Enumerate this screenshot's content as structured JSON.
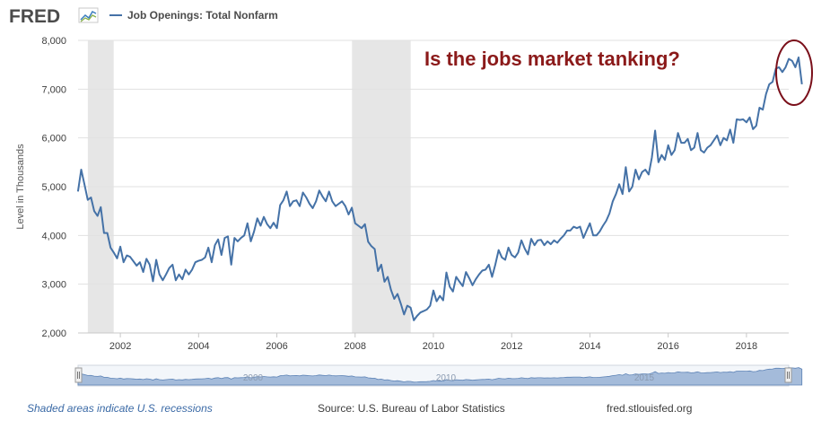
{
  "header": {
    "logo_text": "FRED",
    "legend_label": "Job Openings: Total Nonfarm"
  },
  "annotation": {
    "text": "Is the jobs market tanking?"
  },
  "footer": {
    "recession_note": "Shaded areas indicate U.S. recessions",
    "source": "Source: U.S. Bureau of Labor Statistics",
    "site": "fred.stlouisfed.org"
  },
  "navigator": {
    "labels": [
      "2000",
      "2010",
      "2015"
    ]
  },
  "colors": {
    "line": "#4572a7",
    "recession": "#e6e6e6",
    "annotation": "#8b1a1a",
    "circle": "#7a0f1a",
    "navigator_fill": "#8aa7cf"
  },
  "chart_data": {
    "type": "line",
    "title": "Job Openings: Total Nonfarm",
    "ylabel": "Level in Thousands",
    "xlabel": "",
    "x_range": [
      2000.92,
      2019.08
    ],
    "ylim": [
      2000,
      8000
    ],
    "x_ticks": [
      2002,
      2004,
      2006,
      2008,
      2010,
      2012,
      2014,
      2016,
      2018
    ],
    "x_tick_labels": [
      "2002",
      "2004",
      "2006",
      "2008",
      "2010",
      "2012",
      "2014",
      "2016",
      "2018"
    ],
    "y_ticks": [
      2000,
      3000,
      4000,
      5000,
      6000,
      7000,
      8000
    ],
    "y_tick_labels": [
      "2,000",
      "3,000",
      "4,000",
      "5,000",
      "6,000",
      "7,000",
      "8,000"
    ],
    "grid": true,
    "recessions": [
      [
        2001.17,
        2001.83
      ],
      [
        2007.92,
        2009.42
      ]
    ],
    "start_year": 2000.917,
    "step": 0.08333,
    "series": [
      {
        "name": "Job Openings: Total Nonfarm",
        "values": [
          4900,
          5350,
          5050,
          4730,
          4780,
          4500,
          4400,
          4580,
          4050,
          4050,
          3750,
          3650,
          3530,
          3770,
          3450,
          3590,
          3560,
          3470,
          3380,
          3450,
          3250,
          3520,
          3400,
          3060,
          3500,
          3200,
          3080,
          3200,
          3330,
          3400,
          3080,
          3200,
          3100,
          3300,
          3200,
          3300,
          3450,
          3480,
          3500,
          3550,
          3750,
          3450,
          3800,
          3920,
          3600,
          3950,
          3980,
          3400,
          3950,
          3880,
          3950,
          4000,
          4250,
          3880,
          4080,
          4350,
          4200,
          4380,
          4230,
          4150,
          4260,
          4150,
          4620,
          4720,
          4900,
          4600,
          4700,
          4720,
          4600,
          4880,
          4780,
          4650,
          4560,
          4700,
          4920,
          4800,
          4700,
          4900,
          4700,
          4600,
          4650,
          4700,
          4600,
          4430,
          4570,
          4250,
          4200,
          4150,
          4230,
          3870,
          3780,
          3720,
          3270,
          3400,
          3050,
          3150,
          2880,
          2700,
          2800,
          2600,
          2380,
          2560,
          2520,
          2260,
          2350,
          2420,
          2450,
          2480,
          2560,
          2870,
          2650,
          2760,
          2670,
          3240,
          2950,
          2850,
          3150,
          3050,
          2960,
          3250,
          3120,
          2980,
          3100,
          3200,
          3280,
          3300,
          3400,
          3150,
          3400,
          3700,
          3550,
          3500,
          3750,
          3600,
          3550,
          3650,
          3900,
          3730,
          3610,
          3930,
          3800,
          3900,
          3910,
          3800,
          3880,
          3820,
          3900,
          3850,
          3930,
          4000,
          4100,
          4100,
          4180,
          4150,
          4180,
          3950,
          4100,
          4250,
          4000,
          4000,
          4080,
          4200,
          4300,
          4450,
          4700,
          4850,
          5050,
          4850,
          5400,
          4900,
          5000,
          5350,
          5150,
          5300,
          5350,
          5250,
          5600,
          6150,
          5500,
          5650,
          5550,
          5850,
          5650,
          5750,
          6100,
          5900,
          5900,
          5980,
          5750,
          5800,
          6100,
          5750,
          5700,
          5800,
          5850,
          5950,
          6050,
          5850,
          6000,
          5950,
          6170,
          5900,
          6380,
          6370,
          6380,
          6320,
          6420,
          6180,
          6250,
          6620,
          6580,
          6900,
          7100,
          7150,
          7420,
          7450,
          7350,
          7450,
          7620,
          7580,
          7450,
          7650,
          7100
        ]
      }
    ]
  }
}
